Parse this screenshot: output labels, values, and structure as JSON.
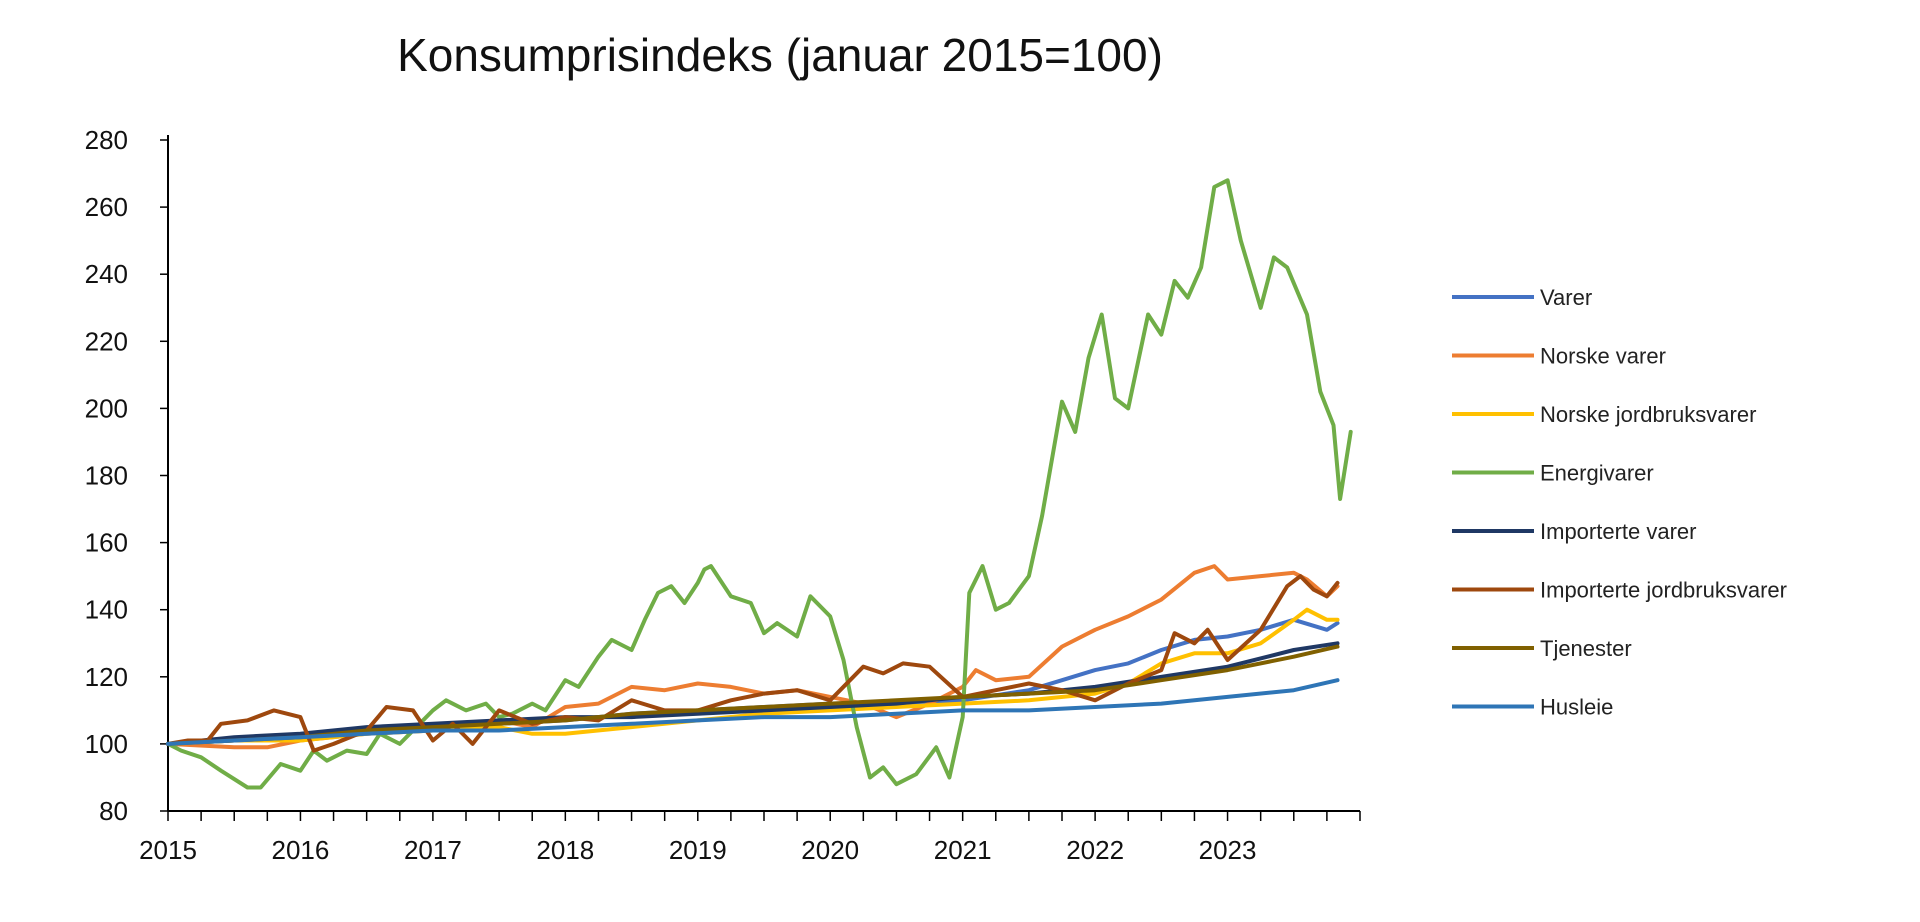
{
  "chart_data": {
    "type": "line",
    "title": "Konsumprisindeks (januar 2015=100)",
    "xlabel": "",
    "ylabel": "",
    "xlim": [
      2015,
      2024
    ],
    "ylim": [
      80,
      280
    ],
    "x_ticks": [
      "2015",
      "2016",
      "2017",
      "2018",
      "2019",
      "2020",
      "2021",
      "2022",
      "2023"
    ],
    "y_ticks": [
      80,
      100,
      120,
      140,
      160,
      180,
      200,
      220,
      240,
      260,
      280
    ],
    "grid": false,
    "legend_position": "right",
    "series": [
      {
        "name": "Varer",
        "color": "#4472C4",
        "points": [
          [
            2015,
            100
          ],
          [
            2015.5,
            101
          ],
          [
            2016,
            102
          ],
          [
            2016.5,
            104
          ],
          [
            2017,
            105
          ],
          [
            2017.5,
            106
          ],
          [
            2018,
            107
          ],
          [
            2018.5,
            109
          ],
          [
            2019,
            110
          ],
          [
            2019.5,
            111
          ],
          [
            2020,
            112
          ],
          [
            2020.5,
            112
          ],
          [
            2021,
            113
          ],
          [
            2021.5,
            116
          ],
          [
            2021.75,
            119
          ],
          [
            2022,
            122
          ],
          [
            2022.25,
            124
          ],
          [
            2022.5,
            128
          ],
          [
            2022.75,
            131
          ],
          [
            2023,
            132
          ],
          [
            2023.25,
            134
          ],
          [
            2023.5,
            137
          ],
          [
            2023.75,
            134
          ],
          [
            2023.83,
            136
          ]
        ]
      },
      {
        "name": "Norske varer",
        "color": "#ED7D31",
        "points": [
          [
            2015,
            100
          ],
          [
            2015.5,
            99
          ],
          [
            2015.75,
            99
          ],
          [
            2016,
            101
          ],
          [
            2016.5,
            103
          ],
          [
            2017,
            104
          ],
          [
            2017.5,
            107
          ],
          [
            2017.75,
            105
          ],
          [
            2018,
            111
          ],
          [
            2018.25,
            112
          ],
          [
            2018.5,
            117
          ],
          [
            2018.75,
            116
          ],
          [
            2019,
            118
          ],
          [
            2019.25,
            117
          ],
          [
            2019.5,
            115
          ],
          [
            2019.75,
            116
          ],
          [
            2020,
            114
          ],
          [
            2020.25,
            112
          ],
          [
            2020.5,
            108
          ],
          [
            2020.75,
            112
          ],
          [
            2021,
            117
          ],
          [
            2021.1,
            122
          ],
          [
            2021.25,
            119
          ],
          [
            2021.5,
            120
          ],
          [
            2021.75,
            129
          ],
          [
            2022,
            134
          ],
          [
            2022.25,
            138
          ],
          [
            2022.5,
            143
          ],
          [
            2022.75,
            151
          ],
          [
            2022.9,
            153
          ],
          [
            2023,
            149
          ],
          [
            2023.25,
            150
          ],
          [
            2023.5,
            151
          ],
          [
            2023.6,
            149
          ],
          [
            2023.75,
            144
          ],
          [
            2023.83,
            147
          ]
        ]
      },
      {
        "name": "Norske jordbruksvarer",
        "color": "#FFC000",
        "points": [
          [
            2015,
            100
          ],
          [
            2015.5,
            101
          ],
          [
            2016,
            101
          ],
          [
            2016.5,
            103
          ],
          [
            2017,
            104
          ],
          [
            2017.5,
            105
          ],
          [
            2017.75,
            103
          ],
          [
            2018,
            103
          ],
          [
            2018.5,
            105
          ],
          [
            2019,
            107
          ],
          [
            2019.5,
            109
          ],
          [
            2020,
            110
          ],
          [
            2020.5,
            111
          ],
          [
            2021,
            112
          ],
          [
            2021.5,
            113
          ],
          [
            2022,
            115
          ],
          [
            2022.25,
            118
          ],
          [
            2022.5,
            124
          ],
          [
            2022.75,
            127
          ],
          [
            2023,
            127
          ],
          [
            2023.25,
            130
          ],
          [
            2023.5,
            137
          ],
          [
            2023.6,
            140
          ],
          [
            2023.75,
            137
          ],
          [
            2023.83,
            137
          ]
        ]
      },
      {
        "name": "Energivarer",
        "color": "#70AD47",
        "points": [
          [
            2015,
            100
          ],
          [
            2015.1,
            98
          ],
          [
            2015.25,
            96
          ],
          [
            2015.4,
            92
          ],
          [
            2015.6,
            87
          ],
          [
            2015.7,
            87
          ],
          [
            2015.85,
            94
          ],
          [
            2016,
            92
          ],
          [
            2016.1,
            98
          ],
          [
            2016.2,
            95
          ],
          [
            2016.35,
            98
          ],
          [
            2016.5,
            97
          ],
          [
            2016.6,
            103
          ],
          [
            2016.75,
            100
          ],
          [
            2016.9,
            106
          ],
          [
            2017,
            110
          ],
          [
            2017.1,
            113
          ],
          [
            2017.25,
            110
          ],
          [
            2017.4,
            112
          ],
          [
            2017.5,
            108
          ],
          [
            2017.6,
            109
          ],
          [
            2017.75,
            112
          ],
          [
            2017.85,
            110
          ],
          [
            2018,
            119
          ],
          [
            2018.1,
            117
          ],
          [
            2018.25,
            126
          ],
          [
            2018.35,
            131
          ],
          [
            2018.5,
            128
          ],
          [
            2018.6,
            137
          ],
          [
            2018.7,
            145
          ],
          [
            2018.8,
            147
          ],
          [
            2018.9,
            142
          ],
          [
            2019,
            148
          ],
          [
            2019.05,
            152
          ],
          [
            2019.1,
            153
          ],
          [
            2019.25,
            144
          ],
          [
            2019.4,
            142
          ],
          [
            2019.5,
            133
          ],
          [
            2019.6,
            136
          ],
          [
            2019.75,
            132
          ],
          [
            2019.85,
            144
          ],
          [
            2020,
            138
          ],
          [
            2020.1,
            125
          ],
          [
            2020.2,
            105
          ],
          [
            2020.3,
            90
          ],
          [
            2020.4,
            93
          ],
          [
            2020.5,
            88
          ],
          [
            2020.65,
            91
          ],
          [
            2020.8,
            99
          ],
          [
            2020.9,
            90
          ],
          [
            2021,
            108
          ],
          [
            2021.05,
            145
          ],
          [
            2021.15,
            153
          ],
          [
            2021.25,
            140
          ],
          [
            2021.35,
            142
          ],
          [
            2021.5,
            150
          ],
          [
            2021.6,
            168
          ],
          [
            2021.75,
            202
          ],
          [
            2021.85,
            193
          ],
          [
            2021.95,
            215
          ],
          [
            2022.05,
            228
          ],
          [
            2022.15,
            203
          ],
          [
            2022.25,
            200
          ],
          [
            2022.4,
            228
          ],
          [
            2022.5,
            222
          ],
          [
            2022.6,
            238
          ],
          [
            2022.7,
            233
          ],
          [
            2022.8,
            242
          ],
          [
            2022.9,
            266
          ],
          [
            2023,
            268
          ],
          [
            2023.1,
            250
          ],
          [
            2023.25,
            230
          ],
          [
            2023.35,
            245
          ],
          [
            2023.45,
            242
          ],
          [
            2023.6,
            228
          ],
          [
            2023.7,
            205
          ],
          [
            2023.8,
            195
          ],
          [
            2023.85,
            173
          ],
          [
            2023.93,
            193
          ]
        ]
      },
      {
        "name": "Importerte varer",
        "color": "#1F3864",
        "points": [
          [
            2015,
            100
          ],
          [
            2015.5,
            102
          ],
          [
            2016,
            103
          ],
          [
            2016.5,
            105
          ],
          [
            2017,
            106
          ],
          [
            2017.5,
            107
          ],
          [
            2018,
            108
          ],
          [
            2018.5,
            108
          ],
          [
            2019,
            109
          ],
          [
            2019.5,
            110
          ],
          [
            2020,
            111
          ],
          [
            2020.5,
            112
          ],
          [
            2021,
            114
          ],
          [
            2021.5,
            115
          ],
          [
            2022,
            117
          ],
          [
            2022.5,
            120
          ],
          [
            2023,
            123
          ],
          [
            2023.5,
            128
          ],
          [
            2023.83,
            130
          ]
        ]
      },
      {
        "name": "Importerte jordbruksvarer",
        "color": "#9E480E",
        "points": [
          [
            2015,
            100
          ],
          [
            2015.15,
            101
          ],
          [
            2015.3,
            101
          ],
          [
            2015.4,
            106
          ],
          [
            2015.6,
            107
          ],
          [
            2015.8,
            110
          ],
          [
            2016,
            108
          ],
          [
            2016.1,
            98
          ],
          [
            2016.25,
            100
          ],
          [
            2016.5,
            104
          ],
          [
            2016.65,
            111
          ],
          [
            2016.85,
            110
          ],
          [
            2017,
            101
          ],
          [
            2017.15,
            106
          ],
          [
            2017.3,
            100
          ],
          [
            2017.5,
            110
          ],
          [
            2017.75,
            106
          ],
          [
            2018,
            108
          ],
          [
            2018.25,
            107
          ],
          [
            2018.5,
            113
          ],
          [
            2018.75,
            110
          ],
          [
            2019,
            110
          ],
          [
            2019.25,
            113
          ],
          [
            2019.5,
            115
          ],
          [
            2019.75,
            116
          ],
          [
            2020,
            113
          ],
          [
            2020.25,
            123
          ],
          [
            2020.4,
            121
          ],
          [
            2020.55,
            124
          ],
          [
            2020.75,
            123
          ],
          [
            2021,
            114
          ],
          [
            2021.25,
            116
          ],
          [
            2021.5,
            118
          ],
          [
            2021.75,
            116
          ],
          [
            2022,
            113
          ],
          [
            2022.25,
            118
          ],
          [
            2022.5,
            122
          ],
          [
            2022.6,
            133
          ],
          [
            2022.75,
            130
          ],
          [
            2022.85,
            134
          ],
          [
            2023,
            125
          ],
          [
            2023.25,
            134
          ],
          [
            2023.45,
            147
          ],
          [
            2023.55,
            150
          ],
          [
            2023.65,
            146
          ],
          [
            2023.75,
            144
          ],
          [
            2023.83,
            148
          ]
        ]
      },
      {
        "name": "Tjenester",
        "color": "#806000",
        "points": [
          [
            2015,
            100
          ],
          [
            2015.5,
            101
          ],
          [
            2016,
            102
          ],
          [
            2016.5,
            104
          ],
          [
            2017,
            105
          ],
          [
            2017.5,
            106
          ],
          [
            2018,
            107
          ],
          [
            2018.5,
            109
          ],
          [
            2019,
            110
          ],
          [
            2019.5,
            111
          ],
          [
            2020,
            112
          ],
          [
            2020.5,
            113
          ],
          [
            2021,
            114
          ],
          [
            2021.5,
            115
          ],
          [
            2022,
            116
          ],
          [
            2022.5,
            119
          ],
          [
            2023,
            122
          ],
          [
            2023.5,
            126
          ],
          [
            2023.83,
            129
          ]
        ]
      },
      {
        "name": "Husleie",
        "color": "#2E75B6",
        "points": [
          [
            2015,
            100
          ],
          [
            2015.5,
            101
          ],
          [
            2016,
            102
          ],
          [
            2016.5,
            103
          ],
          [
            2017,
            104
          ],
          [
            2017.5,
            104
          ],
          [
            2018,
            105
          ],
          [
            2018.5,
            106
          ],
          [
            2019,
            107
          ],
          [
            2019.5,
            108
          ],
          [
            2020,
            108
          ],
          [
            2020.5,
            109
          ],
          [
            2021,
            110
          ],
          [
            2021.5,
            110
          ],
          [
            2022,
            111
          ],
          [
            2022.5,
            112
          ],
          [
            2023,
            114
          ],
          [
            2023.5,
            116
          ],
          [
            2023.83,
            119
          ]
        ]
      }
    ]
  }
}
